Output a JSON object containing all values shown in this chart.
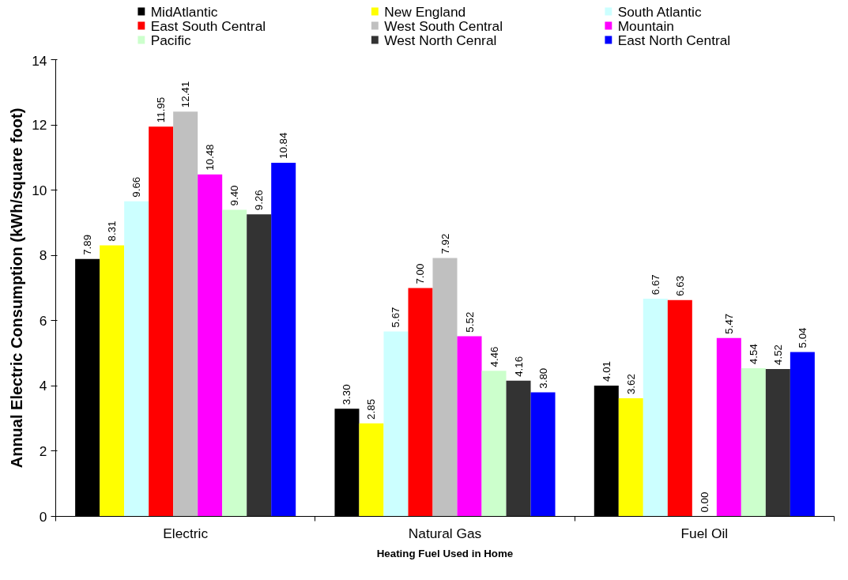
{
  "chart_data": {
    "type": "bar",
    "xlabel": "Heating Fuel Used in Home",
    "ylabel": "Annual Electric Consumption (kWh/square foot)",
    "categories": [
      "Electric",
      "Natural Gas",
      "Fuel Oil"
    ],
    "series": [
      {
        "name": "MidAtlantic",
        "color": "#000000",
        "values": [
          7.89,
          3.3,
          4.01
        ],
        "value_labels": [
          "7.89",
          "3.30",
          "4.01"
        ]
      },
      {
        "name": "New England",
        "color": "#ffff00",
        "values": [
          8.31,
          2.85,
          3.62
        ],
        "value_labels": [
          "8.31",
          "2.85",
          "3.62"
        ]
      },
      {
        "name": "South Atlantic",
        "color": "#ccffff",
        "values": [
          9.66,
          5.67,
          6.67
        ],
        "value_labels": [
          "9.66",
          "5.67",
          "6.67"
        ]
      },
      {
        "name": "East South Central",
        "color": "#ff0000",
        "values": [
          11.95,
          7.0,
          6.63
        ],
        "value_labels": [
          "11.95",
          "7.00",
          "6.63"
        ]
      },
      {
        "name": "West South Central",
        "color": "#c0c0c0",
        "values": [
          12.41,
          7.92,
          0.0
        ],
        "value_labels": [
          "12.41",
          "7.92",
          "0.00"
        ]
      },
      {
        "name": "Mountain",
        "color": "#ff00ff",
        "values": [
          10.48,
          5.52,
          5.47
        ],
        "value_labels": [
          "10.48",
          "5.52",
          "5.47"
        ]
      },
      {
        "name": "Pacific",
        "color": "#ccffcc",
        "values": [
          9.4,
          4.46,
          4.54
        ],
        "value_labels": [
          "9.40",
          "4.46",
          "4.54"
        ]
      },
      {
        "name": "West North Cenral",
        "color": "#333333",
        "values": [
          9.26,
          4.16,
          4.52
        ],
        "value_labels": [
          "9.26",
          "4.16",
          "4.52"
        ]
      },
      {
        "name": "East North Central",
        "color": "#0000ff",
        "values": [
          10.84,
          3.8,
          5.04
        ],
        "value_labels": [
          "10.84",
          "3.80",
          "5.04"
        ]
      }
    ],
    "ylim": [
      0,
      14
    ],
    "yticks": [
      0,
      2,
      4,
      6,
      8,
      10,
      12,
      14
    ],
    "grid": false,
    "legend": "top"
  }
}
